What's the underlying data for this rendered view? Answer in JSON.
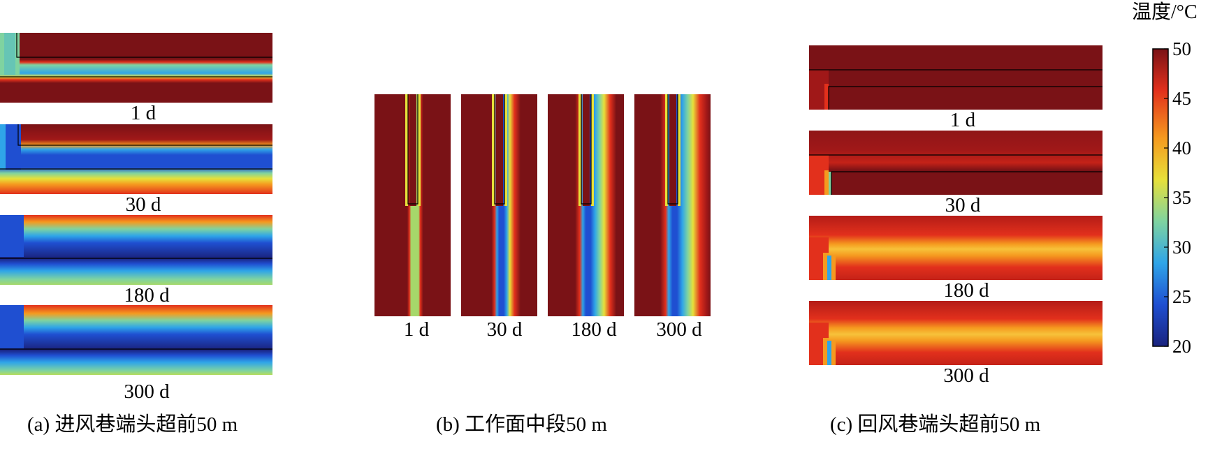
{
  "panel_a": {
    "caption": "(a) 进风巷端头超前50 m",
    "frames": [
      {
        "label": "1 d"
      },
      {
        "label": "30 d"
      },
      {
        "label": "180 d"
      },
      {
        "label": "300 d"
      }
    ]
  },
  "panel_b": {
    "caption": "(b) 工作面中段50 m",
    "frames": [
      {
        "label": "1 d"
      },
      {
        "label": "30 d"
      },
      {
        "label": "180 d"
      },
      {
        "label": "300 d"
      }
    ]
  },
  "panel_c": {
    "caption": "(c) 回风巷端头超前50 m",
    "frames": [
      {
        "label": "1 d"
      },
      {
        "label": "30 d"
      },
      {
        "label": "180 d"
      },
      {
        "label": "300 d"
      }
    ]
  },
  "colorbar": {
    "title": "温度/°C",
    "ticks": [
      "50",
      "45",
      "40",
      "35",
      "30",
      "25",
      "20"
    ],
    "min": 20,
    "max": 50,
    "colormap": "rainbow",
    "colors": [
      "#1a237e",
      "#1f4fd1",
      "#2fa5e8",
      "#7fd3a0",
      "#e7e03a",
      "#f59a1f",
      "#e2301c",
      "#7a1216"
    ]
  }
}
